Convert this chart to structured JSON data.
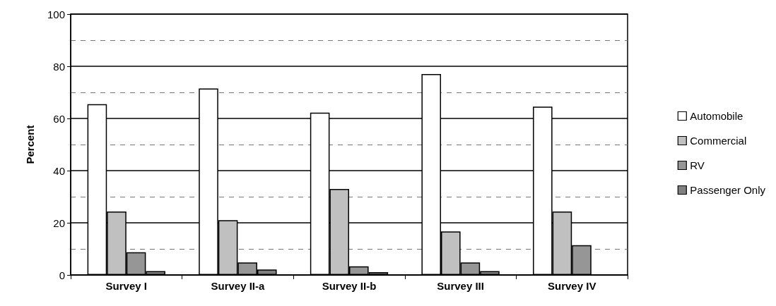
{
  "chart_data": {
    "type": "bar",
    "ylabel": "Percent",
    "categories": [
      "Survey I",
      "Survey II-a",
      "Survey II-b",
      "Survey III",
      "Survey IV"
    ],
    "series": [
      {
        "name": "Automobile",
        "color": "#ffffff",
        "values": [
          65.5,
          71.5,
          62.2,
          77.0,
          64.5
        ]
      },
      {
        "name": "Commercial",
        "color": "#c0c0c0",
        "values": [
          24.3,
          21.0,
          33.0,
          16.7,
          24.3
        ]
      },
      {
        "name": "RV",
        "color": "#969696",
        "values": [
          8.7,
          4.8,
          3.3,
          4.8,
          11.4
        ]
      },
      {
        "name": "Passenger Only",
        "color": "#808080",
        "values": [
          1.5,
          2.1,
          1.1,
          1.5,
          null
        ]
      }
    ],
    "ylim": [
      0,
      100
    ],
    "yticks": [
      0,
      20,
      40,
      60,
      80,
      100
    ],
    "grid": true,
    "legend": "right"
  }
}
